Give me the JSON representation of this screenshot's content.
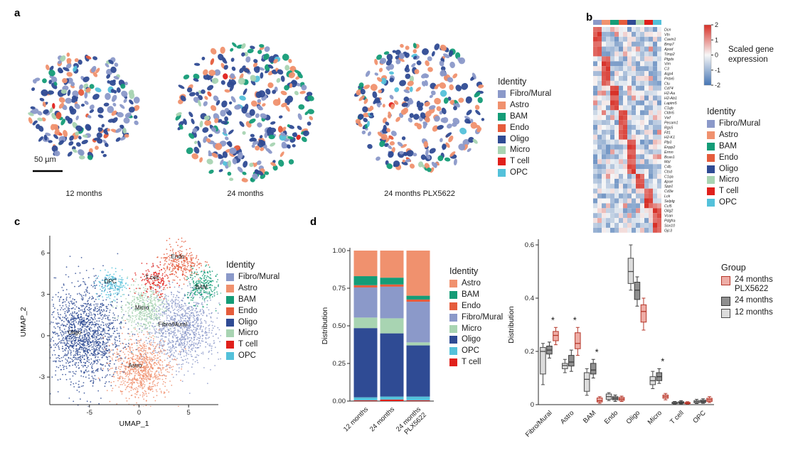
{
  "figure": {
    "panels": {
      "a": "a",
      "b": "b",
      "c": "c",
      "d": "d"
    }
  },
  "identity_colors": {
    "Fibro/Mural": "#8b99c9",
    "Astro": "#f0916e",
    "BAM": "#149c77",
    "Endo": "#e55c3c",
    "Oligo": "#2f4b94",
    "Micro": "#a8d4b2",
    "T cell": "#e0201b",
    "OPC": "#54c1da"
  },
  "legends": {
    "identity_a": {
      "title": "Identity",
      "items": [
        "Fibro/Mural",
        "Astro",
        "BAM",
        "Endo",
        "Oligo",
        "Micro",
        "T cell",
        "OPC"
      ]
    },
    "identity_b": {
      "title": "Identity",
      "items": [
        "Fibro/Mural",
        "Astro",
        "BAM",
        "Endo",
        "Oligo",
        "Micro",
        "T cell",
        "OPC"
      ]
    },
    "identity_c": {
      "title": "Identity",
      "items": [
        "Fibro/Mural",
        "Astro",
        "BAM",
        "Endo",
        "Oligo",
        "Micro",
        "T cell",
        "OPC"
      ]
    },
    "identity_d": {
      "title": "Identity",
      "items": [
        "Astro",
        "BAM",
        "Endo",
        "Fibro/Mural",
        "Micro",
        "Oligo",
        "OPC",
        "T cell"
      ]
    },
    "group": {
      "title": "Group",
      "items": [
        {
          "label": "24 months PLX5622",
          "fill": "#eeada6",
          "stroke": "#b5372a"
        },
        {
          "label": "24 months",
          "fill": "#8f8f8f",
          "stroke": "#3a3a3a"
        },
        {
          "label": "12 months",
          "fill": "#dcdcdc",
          "stroke": "#4a4a4a"
        }
      ]
    }
  },
  "chart_data": [
    {
      "id": "spatial",
      "type": "scatter",
      "panel": "a",
      "description": "Spatial cell maps of brain sections, cells colored by identity",
      "sections": [
        {
          "label": "12 months"
        },
        {
          "label": "24 months"
        },
        {
          "label": "24 months PLX5622"
        }
      ],
      "scale_bar": "50 µm"
    },
    {
      "id": "heatmap",
      "type": "heatmap",
      "panel": "b",
      "genes": [
        "Dcn",
        "Vtn",
        "Cavin1",
        "Bmp7",
        "Apod",
        "Timp2",
        "Ptgds",
        "Vim",
        "C3",
        "Aqp4",
        "Prdx6",
        "Clu",
        "Cd74",
        "H2-Aa",
        "H2-Ab1",
        "Laptm5",
        "C1qb",
        "Cldn5",
        "Vwf",
        "Pecam1",
        "Rgs5",
        "Flt1",
        "H2-K1",
        "Plp1",
        "Enpp2",
        "Ermn",
        "Bcas1",
        "Mal",
        "C4b",
        "Ctsd",
        "C1qa",
        "Apoe",
        "Spp1",
        "Cd3e",
        "Lck",
        "Selplg",
        "Ccl5",
        "Olig2",
        "Vcan",
        "Pdgfra",
        "Sox10",
        "Gjc3"
      ],
      "gene_blocks": [
        6,
        6,
        5,
        6,
        7,
        3,
        4,
        5
      ],
      "block_identity": [
        "Fibro/Mural",
        "Astro",
        "BAM",
        "Endo",
        "Oligo",
        "Micro",
        "T cell",
        "OPC"
      ],
      "columns_per_identity": 2,
      "colorbar": {
        "ticks": [
          "2",
          "1",
          "0",
          "-1",
          "-2"
        ],
        "label": "Scaled gene expression",
        "label_lines": [
          "Scaled gene",
          "expression"
        ],
        "colormap": [
          "#d73027",
          "#f7f7f7",
          "#4575b4"
        ]
      }
    },
    {
      "id": "umap",
      "type": "scatter",
      "panel": "c",
      "xlabel": "UMAP_1",
      "ylabel": "UMAP_2",
      "xlim": [
        -9,
        8
      ],
      "ylim": [
        -5,
        7
      ],
      "xticks": [
        -5,
        0,
        5
      ],
      "yticks": [
        -3,
        0,
        3,
        6
      ],
      "clusters": [
        {
          "name": "Oligo",
          "cx": -5.4,
          "cy": 0.2,
          "sx": 1.8,
          "sy": 1.7,
          "n": 1500
        },
        {
          "name": "Fibro/Mural",
          "cx": 4.3,
          "cy": 0.6,
          "sx": 1.7,
          "sy": 1.4,
          "n": 1000
        },
        {
          "name": "Astro",
          "cx": 0.2,
          "cy": -2.4,
          "sx": 1.4,
          "sy": 1.1,
          "n": 800
        },
        {
          "name": "Micro",
          "cx": 0.6,
          "cy": 2.0,
          "sx": 1.05,
          "sy": 0.85,
          "n": 420
        },
        {
          "name": "Endo",
          "cx": 4.2,
          "cy": 5.3,
          "sx": 1.05,
          "sy": 0.6,
          "n": 260
        },
        {
          "name": "BAM",
          "cx": 6.4,
          "cy": 3.6,
          "sx": 0.8,
          "sy": 0.7,
          "n": 220
        },
        {
          "name": "OPC",
          "cx": -2.7,
          "cy": 3.7,
          "sx": 0.8,
          "sy": 0.55,
          "n": 170
        },
        {
          "name": "T cell",
          "cx": 1.7,
          "cy": 3.9,
          "sx": 0.9,
          "sy": 0.6,
          "n": 160
        }
      ],
      "labels": [
        {
          "text": "Endo",
          "x": 3.9,
          "y": 5.6
        },
        {
          "text": "BAM",
          "x": 6.3,
          "y": 3.4
        },
        {
          "text": "OPC",
          "x": -2.9,
          "y": 3.8
        },
        {
          "text": "T cell",
          "x": 1.3,
          "y": 4.1
        },
        {
          "text": "Micro",
          "x": 0.3,
          "y": 1.9
        },
        {
          "text": "Fibro/Mural",
          "x": 3.4,
          "y": 0.7
        },
        {
          "text": "Oligo",
          "x": -6.5,
          "y": 0.1
        },
        {
          "text": "Astro",
          "x": -0.4,
          "y": -2.3
        }
      ]
    },
    {
      "id": "stacked_bar",
      "type": "bar",
      "panel": "d-left",
      "ylabel": "Distribution",
      "yticks": [
        0,
        0.25,
        0.5,
        0.75,
        1
      ],
      "ytick_labels": [
        "0.00",
        "0.25",
        "0.50",
        "0.75",
        "1.00"
      ],
      "categories": [
        "12 months",
        "24 months",
        "24 months PLX5622"
      ],
      "stack_order": [
        "T cell",
        "OPC",
        "Oligo",
        "Micro",
        "Fibro/Mural",
        "Endo",
        "BAM",
        "Astro"
      ],
      "values": {
        "12 months": {
          "T cell": 0.005,
          "OPC": 0.02,
          "Oligo": 0.46,
          "Micro": 0.07,
          "Fibro/Mural": 0.2,
          "Endo": 0.015,
          "BAM": 0.06,
          "Astro": 0.17
        },
        "24 months": {
          "T cell": 0.01,
          "OPC": 0.02,
          "Oligo": 0.42,
          "Micro": 0.1,
          "Fibro/Mural": 0.21,
          "Endo": 0.015,
          "BAM": 0.045,
          "Astro": 0.18
        },
        "24 months PLX5622": {
          "T cell": 0.005,
          "OPC": 0.025,
          "Oligo": 0.34,
          "Micro": 0.02,
          "Fibro/Mural": 0.27,
          "Endo": 0.015,
          "BAM": 0.025,
          "Astro": 0.3
        }
      }
    },
    {
      "id": "boxplot",
      "type": "box",
      "panel": "d-right",
      "ylabel": "Distribution",
      "yticks": [
        0,
        0.2,
        0.4,
        0.6
      ],
      "ytick_labels": [
        "0",
        "0.2",
        "0.4",
        "0.6"
      ],
      "categories": [
        "Fibro/Mural",
        "Astro",
        "BAM",
        "Endo",
        "Oligo",
        "Micro",
        "T cell",
        "OPC"
      ],
      "groups": [
        "12 months",
        "24 months",
        "24 months PLX5622"
      ],
      "group_styles": {
        "12 months": {
          "fill": "#dcdcdc",
          "stroke": "#4a4a4a"
        },
        "24 months": {
          "fill": "#8f8f8f",
          "stroke": "#3a3a3a"
        },
        "24 months PLX5622": {
          "fill": "#eeada6",
          "stroke": "#b5372a"
        }
      },
      "significant": [
        "Fibro/Mural",
        "Astro",
        "BAM",
        "Micro"
      ],
      "boxes": {
        "Fibro/Mural": {
          "12 months": [
            0.075,
            0.115,
            0.2,
            0.215,
            0.23
          ],
          "24 months": [
            0.175,
            0.19,
            0.205,
            0.22,
            0.235
          ],
          "24 months PLX5622": [
            0.225,
            0.24,
            0.26,
            0.275,
            0.29
          ]
        },
        "Astro": {
          "12 months": [
            0.12,
            0.135,
            0.147,
            0.155,
            0.17
          ],
          "24 months": [
            0.125,
            0.145,
            0.16,
            0.185,
            0.205
          ],
          "24 months PLX5622": [
            0.185,
            0.21,
            0.23,
            0.27,
            0.29
          ]
        },
        "BAM": {
          "12 months": [
            0.035,
            0.05,
            0.095,
            0.12,
            0.135
          ],
          "24 months": [
            0.1,
            0.115,
            0.13,
            0.155,
            0.17
          ],
          "24 months PLX5622": [
            0.005,
            0.01,
            0.015,
            0.025,
            0.03
          ]
        },
        "Endo": {
          "12 months": [
            0.015,
            0.02,
            0.03,
            0.04,
            0.045
          ],
          "24 months": [
            0.012,
            0.018,
            0.024,
            0.03,
            0.036
          ],
          "24 months PLX5622": [
            0.012,
            0.016,
            0.021,
            0.027,
            0.032
          ]
        },
        "Oligo": {
          "12 months": [
            0.43,
            0.455,
            0.5,
            0.55,
            0.6
          ],
          "24 months": [
            0.37,
            0.395,
            0.43,
            0.46,
            0.48
          ],
          "24 months PLX5622": [
            0.28,
            0.31,
            0.35,
            0.375,
            0.4
          ]
        },
        "Micro": {
          "12 months": [
            0.06,
            0.075,
            0.09,
            0.105,
            0.125
          ],
          "24 months": [
            0.08,
            0.09,
            0.105,
            0.12,
            0.135
          ],
          "24 months PLX5622": [
            0.018,
            0.024,
            0.03,
            0.036,
            0.042
          ]
        },
        "T cell": {
          "12 months": [
            0.002,
            0.004,
            0.006,
            0.009,
            0.012
          ],
          "24 months": [
            0.003,
            0.005,
            0.008,
            0.011,
            0.015
          ],
          "24 months PLX5622": [
            0.002,
            0.004,
            0.006,
            0.008,
            0.011
          ]
        },
        "OPC": {
          "12 months": [
            0.004,
            0.007,
            0.011,
            0.015,
            0.02
          ],
          "24 months": [
            0.005,
            0.008,
            0.012,
            0.017,
            0.022
          ],
          "24 months PLX5622": [
            0.008,
            0.012,
            0.018,
            0.024,
            0.03
          ]
        }
      }
    }
  ]
}
